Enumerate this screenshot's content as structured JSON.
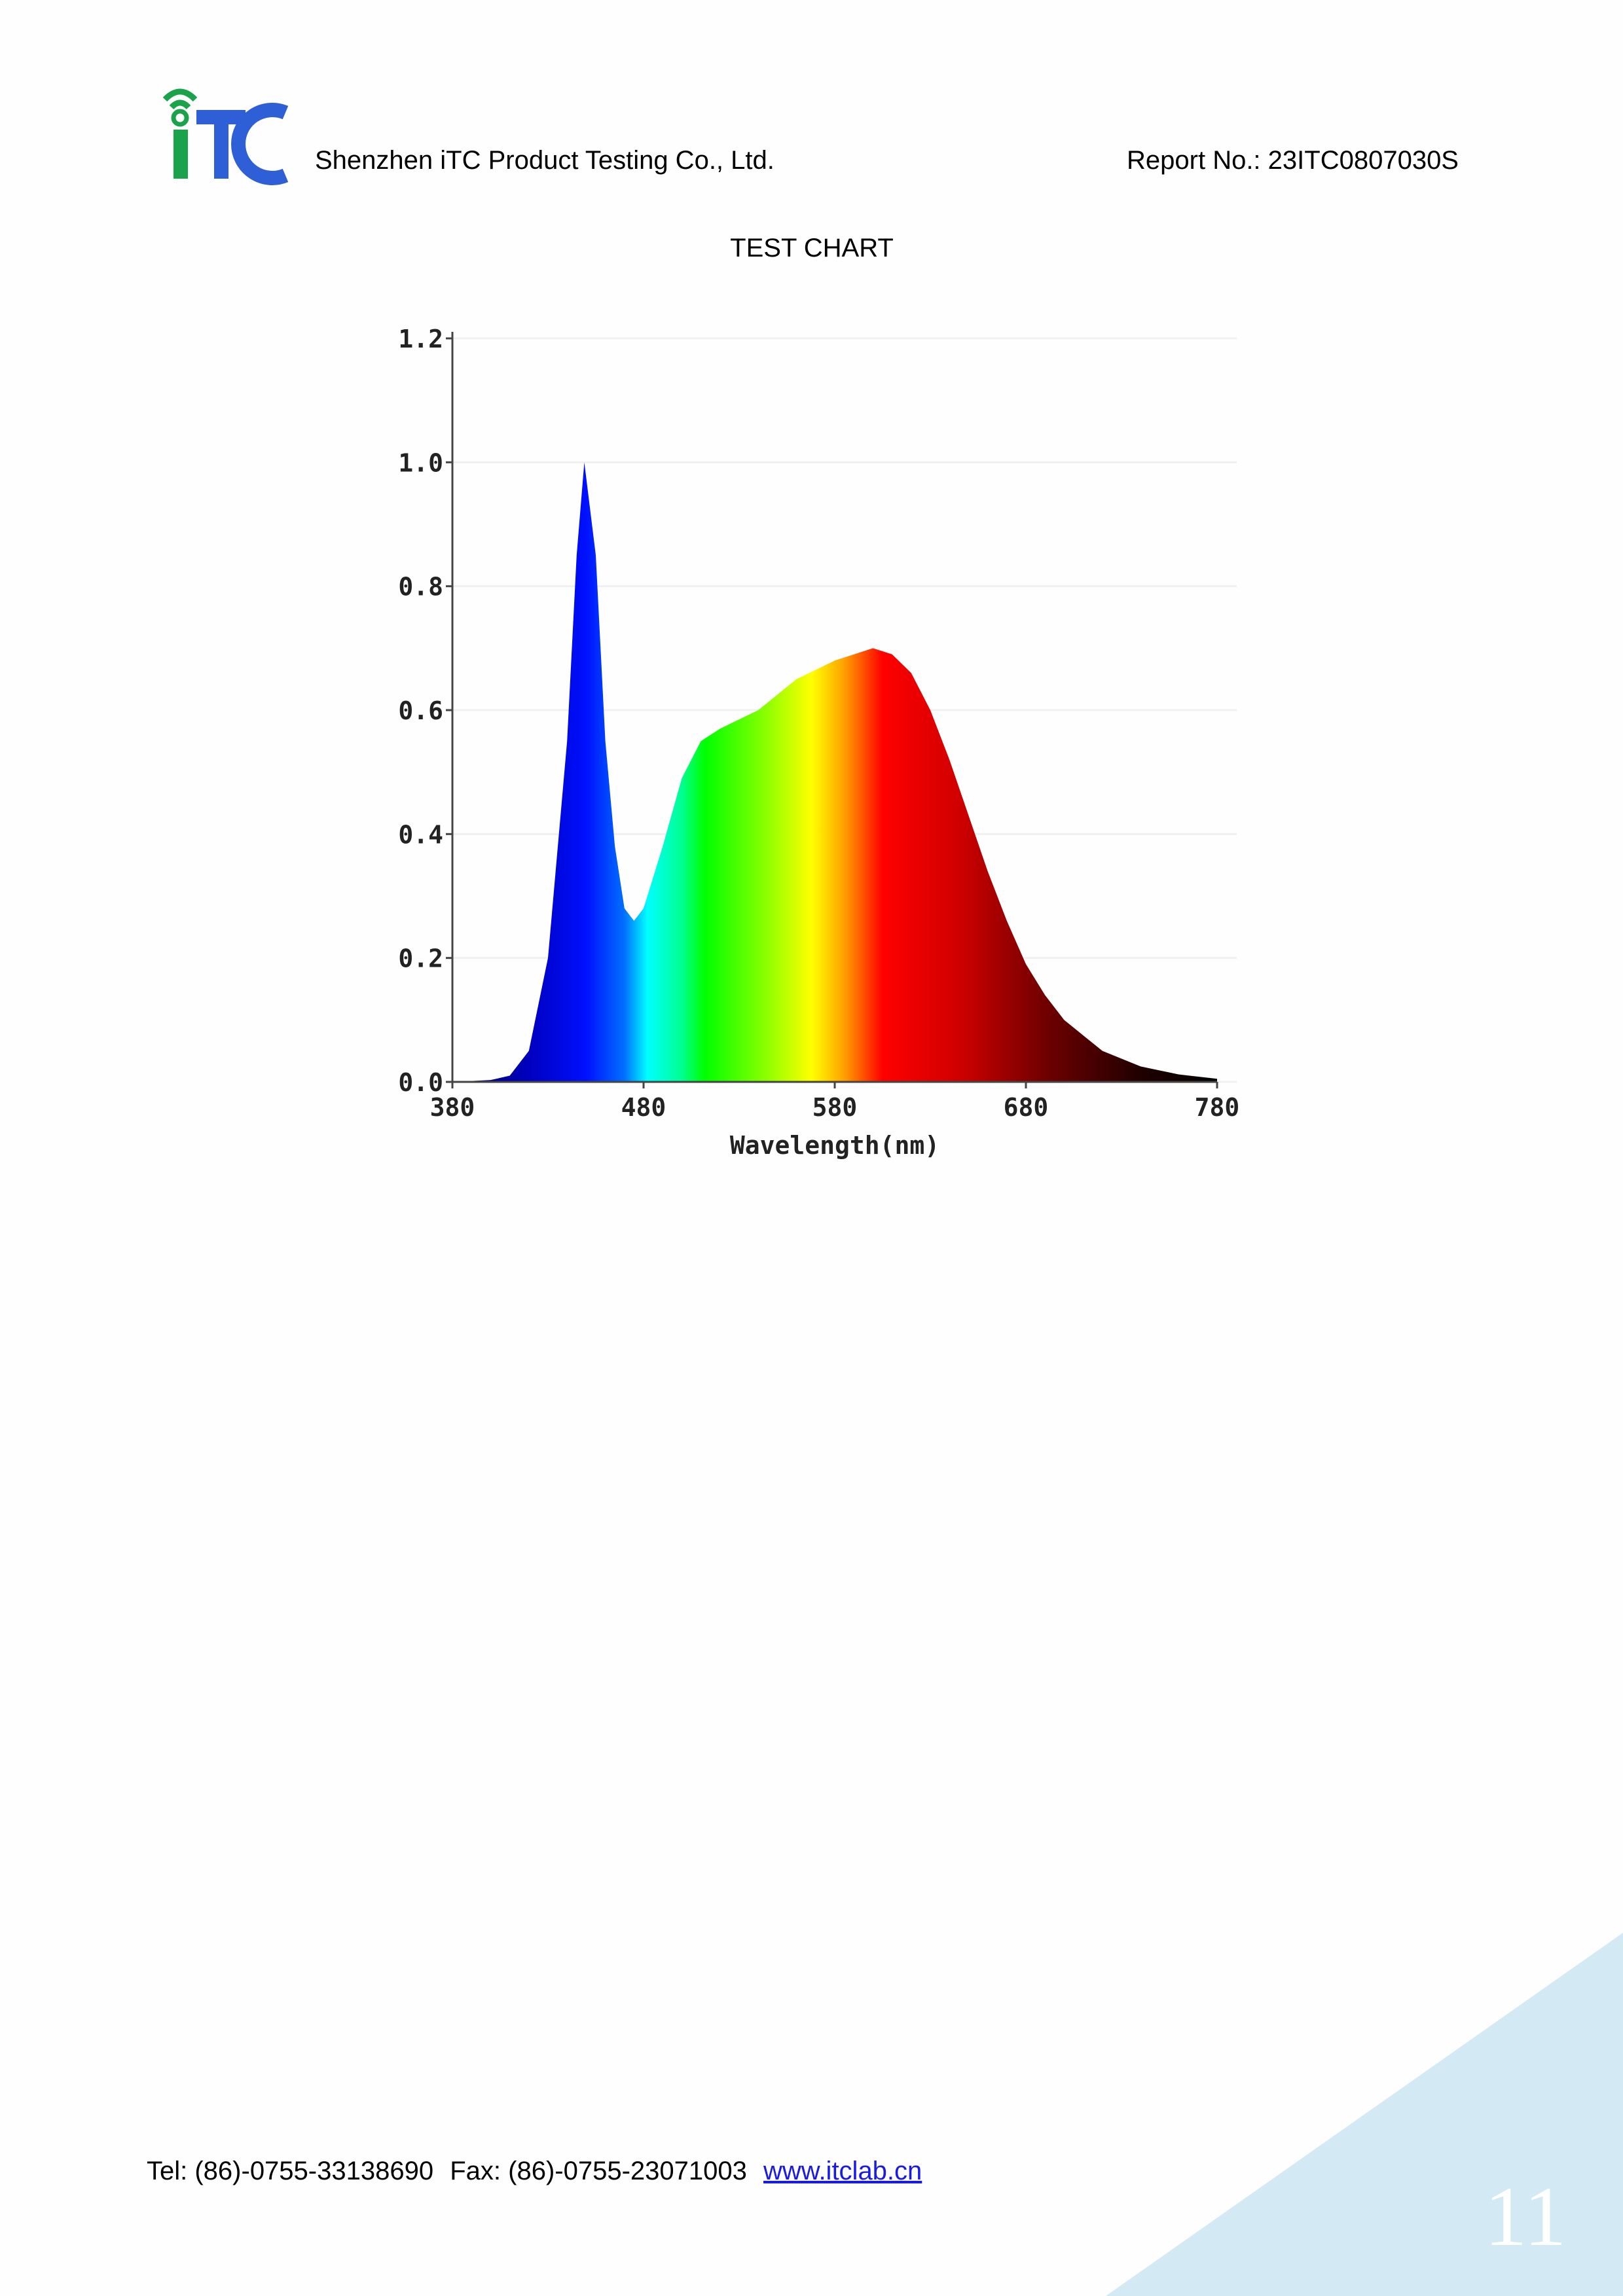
{
  "header": {
    "company": "Shenzhen iTC Product Testing Co., Ltd.",
    "report_no": "Report No.: 23ITC0807030S"
  },
  "section_title": "TEST CHART",
  "chart_data": {
    "type": "area",
    "x": [
      380,
      400,
      410,
      420,
      430,
      440,
      445,
      449,
      455,
      460,
      465,
      470,
      475,
      480,
      490,
      500,
      510,
      520,
      540,
      560,
      580,
      600,
      610,
      620,
      630,
      640,
      650,
      660,
      670,
      680,
      690,
      700,
      720,
      740,
      760,
      780
    ],
    "values": [
      0,
      0.003,
      0.01,
      0.05,
      0.2,
      0.55,
      0.85,
      1.0,
      0.85,
      0.55,
      0.38,
      0.28,
      0.26,
      0.28,
      0.38,
      0.49,
      0.55,
      0.57,
      0.6,
      0.65,
      0.68,
      0.7,
      0.69,
      0.66,
      0.6,
      0.52,
      0.43,
      0.34,
      0.26,
      0.19,
      0.14,
      0.1,
      0.05,
      0.025,
      0.012,
      0.005
    ],
    "xlabel": "Wavelength(nm)",
    "xlim": [
      380,
      780
    ],
    "xticks": [
      380,
      480,
      580,
      680,
      780
    ],
    "ylim": [
      0,
      1.2
    ],
    "yticks": [
      {
        "value": 0,
        "label": "0.0"
      },
      0.2,
      0.4,
      0.6,
      0.8,
      {
        "value": 1,
        "label": "1.0"
      },
      1.2
    ],
    "grid": true
  },
  "footer": {
    "tel": "Tel: (86)-0755-33138690",
    "fax": "Fax: (86)-0755-23071003",
    "website": "www.itclab.cn",
    "page_number": "11"
  }
}
